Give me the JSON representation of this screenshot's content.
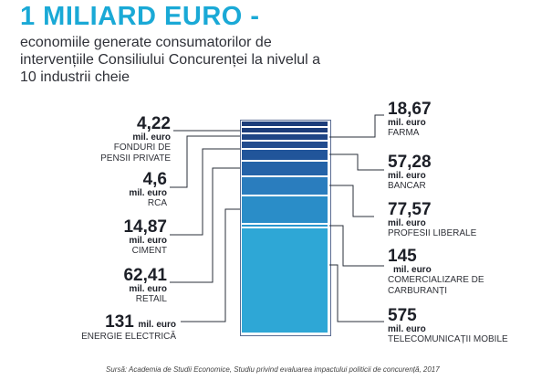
{
  "header": {
    "title": "1 MILIARD EURO -",
    "subtitle_lines": [
      "economiile generate consumatorilor de",
      "intervențiile Consiliului Concurenței la nivelul a",
      "10 industrii cheie"
    ]
  },
  "unit": "mil. euro",
  "colors": {
    "accent": "#1aa9d6",
    "dark_navy": "#1d3d7a",
    "mid_blue": "#2c7fc0",
    "light_blue": "#2ea7d6"
  },
  "industries_left": [
    {
      "value": "4,22",
      "name_lines": [
        "FONDURI DE",
        "PENSII PRIVATE"
      ]
    },
    {
      "value": "4,6",
      "name_lines": [
        "RCA"
      ]
    },
    {
      "value": "14,87",
      "name_lines": [
        "CIMENT"
      ]
    },
    {
      "value": "62,41",
      "name_lines": [
        "RETAIL"
      ]
    },
    {
      "value": "131",
      "name_lines": [
        "ENERGIE ELECTRICĂ"
      ]
    }
  ],
  "industries_right": [
    {
      "value": "18,67",
      "name_lines": [
        "FARMA"
      ]
    },
    {
      "value": "57,28",
      "name_lines": [
        "BANCAR"
      ]
    },
    {
      "value": "77,57",
      "name_lines": [
        "PROFESII LIBERALE"
      ]
    },
    {
      "value": "145",
      "name_lines": [
        "COMERCIALIZARE DE",
        "CARBURANȚI"
      ]
    },
    {
      "value": "575",
      "name_lines": [
        "TELECOMUNICAȚII MOBILE"
      ]
    }
  ],
  "source": "Sursă: Academia de Studii Economice, Studiu privind evaluarea impactului politicii de concurență, 2017"
}
